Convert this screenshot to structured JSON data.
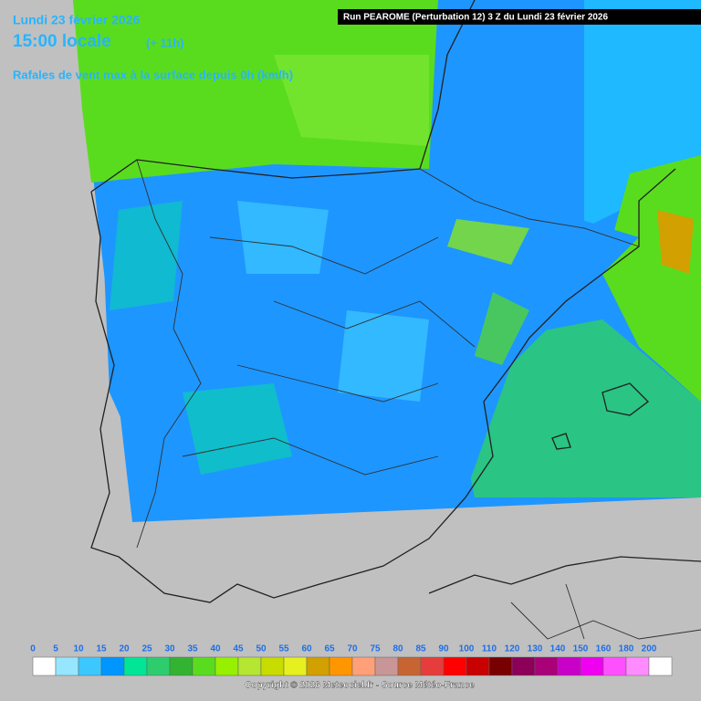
{
  "header": {
    "date": "Lundi 23 février 2026",
    "time": "15:00 locale",
    "lead": "(+ 11h)",
    "parameter": "Rafales de vent max à la surface depuis 0h (km/h)",
    "run": "Run PEAROME (Perturbation 12) 3 Z du Lundi 23 février 2026"
  },
  "legend": {
    "values": [
      0,
      5,
      10,
      15,
      20,
      25,
      30,
      35,
      40,
      45,
      50,
      55,
      60,
      65,
      70,
      75,
      80,
      85,
      90,
      100,
      110,
      120,
      130,
      140,
      150,
      160,
      180,
      200
    ],
    "colors": [
      "#ffffff",
      "#96e6ff",
      "#3cc8ff",
      "#0096ff",
      "#00e696",
      "#2dcd6e",
      "#32b432",
      "#5adc1e",
      "#96f000",
      "#b4e632",
      "#c8dc00",
      "#e6f01e",
      "#d2a000",
      "#ff9600",
      "#ffa078",
      "#c89696",
      "#c86432",
      "#e63c3c",
      "#ff0000",
      "#c80000",
      "#780000",
      "#8c005a",
      "#aa0078",
      "#c800c8",
      "#f000f0",
      "#ff50ff",
      "#ff8cff",
      "#ffffff"
    ]
  },
  "footer": {
    "copyright": "Copyright © 2026 Meteociel.fr - Source Météo-France"
  }
}
